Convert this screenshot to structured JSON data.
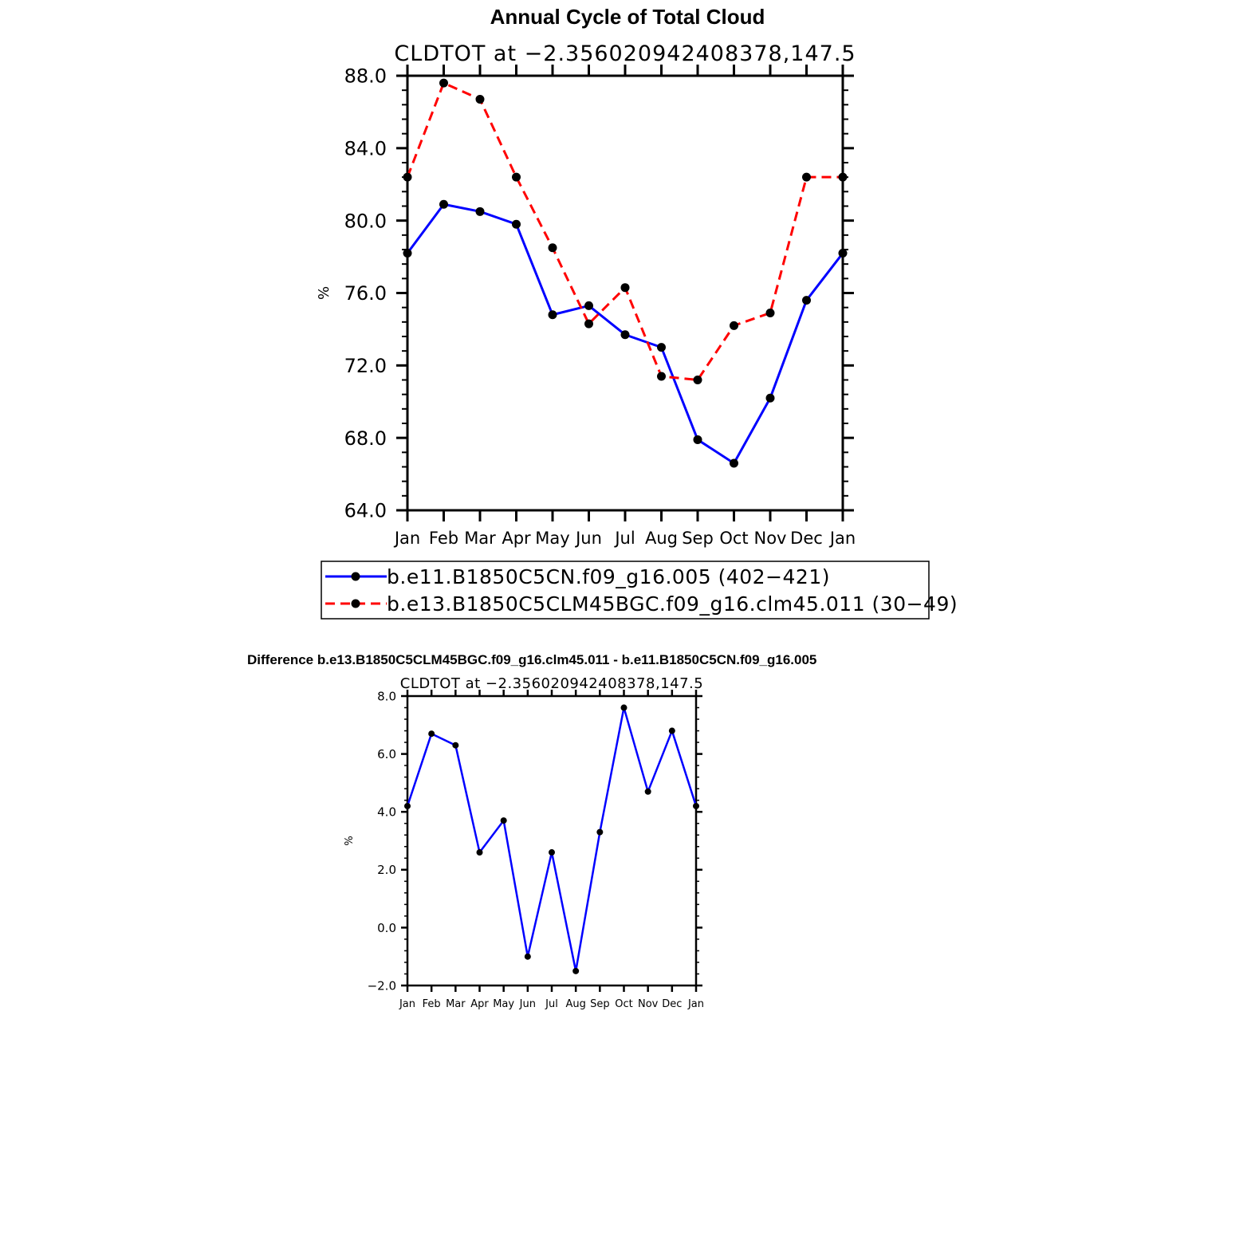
{
  "page": {
    "title": "Annual Cycle of Total Cloud",
    "difference_title": "Difference b.e13.B1850C5CLM45BGC.f09_g16.clm45.011 - b.e11.B1850C5CN.f09_g16.005"
  },
  "chart_data": [
    {
      "type": "line",
      "title": "Annual Cycle of Total Cloud",
      "subtitle": "CLDTOT at −2.356020942408378,147.5",
      "ylabel": "%",
      "xlabel": "",
      "categories": [
        "Jan",
        "Feb",
        "Mar",
        "Apr",
        "May",
        "Jun",
        "Jul",
        "Aug",
        "Sep",
        "Oct",
        "Nov",
        "Dec",
        "Jan"
      ],
      "ylim": [
        64.0,
        88.0
      ],
      "yticks": [
        "64.0",
        "68.0",
        "72.0",
        "76.0",
        "80.0",
        "84.0",
        "88.0"
      ],
      "grid": false,
      "legend_position": "bottom",
      "series": [
        {
          "name": "b.e11.B1850C5CN.f09_g16.005 (402−421)",
          "color": "#0000ff",
          "dash": "solid",
          "values": [
            78.2,
            80.9,
            80.5,
            79.8,
            74.8,
            75.3,
            73.7,
            73.0,
            67.9,
            66.6,
            70.2,
            75.6,
            78.2
          ]
        },
        {
          "name": "b.e13.B1850C5CLM45BGC.f09_g16.clm45.011 (30−49)",
          "color": "#ff0000",
          "dash": "dashed",
          "values": [
            82.4,
            87.6,
            86.7,
            82.4,
            78.5,
            74.3,
            76.3,
            71.4,
            71.2,
            74.2,
            74.9,
            82.4,
            82.4
          ]
        }
      ]
    },
    {
      "type": "line",
      "title": "Difference b.e13.B1850C5CLM45BGC.f09_g16.clm45.011 - b.e11.B1850C5CN.f09_g16.005",
      "subtitle": "CLDTOT at −2.356020942408378,147.5",
      "ylabel": "%",
      "xlabel": "",
      "categories": [
        "Jan",
        "Feb",
        "Mar",
        "Apr",
        "May",
        "Jun",
        "Jul",
        "Aug",
        "Sep",
        "Oct",
        "Nov",
        "Dec",
        "Jan"
      ],
      "ylim": [
        -2.0,
        8.0
      ],
      "yticks": [
        "−2.0",
        "0.0",
        "2.0",
        "4.0",
        "6.0",
        "8.0"
      ],
      "grid": false,
      "series": [
        {
          "color": "#0000ff",
          "dash": "solid",
          "values": [
            4.2,
            6.7,
            6.3,
            2.6,
            3.7,
            -1.0,
            2.6,
            -1.5,
            3.3,
            7.6,
            4.7,
            6.8,
            4.2
          ]
        }
      ]
    }
  ]
}
